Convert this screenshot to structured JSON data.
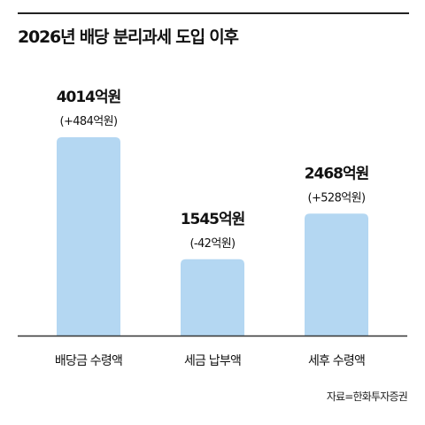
{
  "title": "2026년 배당 분리과세 도입 이후",
  "source": "자료=한화투자증권",
  "colors": {
    "bar": "#b4d7f2",
    "axis": "#333333",
    "text": "#111111"
  },
  "chart_data": {
    "type": "bar",
    "title": "2026년 배당 분리과세 도입 이후",
    "categories": [
      "배당금 수령액",
      "세금 납부액",
      "세후 수령액"
    ],
    "values": [
      4014,
      1545,
      2468
    ],
    "data_labels": [
      "4014억원",
      "1545억원",
      "2468억원"
    ],
    "change_labels": [
      "(+484억원)",
      "(-42억원)",
      "(+528억원)"
    ],
    "unit": "억원",
    "ylim": [
      0,
      4500
    ],
    "grid": false,
    "legend": "none"
  }
}
